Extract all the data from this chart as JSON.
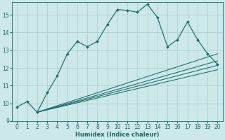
{
  "xlabel": "Humidex (Indice chaleur)",
  "bg_color": "#cce8e8",
  "grid_color": "#aacccc",
  "line_color": "#1a6b6b",
  "xlim": [
    -0.5,
    20.5
  ],
  "ylim": [
    9.0,
    15.7
  ],
  "xticks": [
    0,
    1,
    2,
    3,
    4,
    5,
    6,
    7,
    8,
    9,
    10,
    11,
    12,
    13,
    14,
    15,
    16,
    17,
    18,
    19,
    20
  ],
  "yticks": [
    9,
    10,
    11,
    12,
    13,
    14,
    15
  ],
  "main_x": [
    0,
    1,
    2,
    3,
    4,
    5,
    6,
    7,
    8,
    9,
    10,
    11,
    12,
    13,
    14,
    15,
    16,
    17,
    18,
    19,
    20
  ],
  "main_y": [
    9.8,
    10.1,
    9.5,
    10.6,
    11.55,
    12.8,
    13.5,
    13.2,
    13.5,
    14.45,
    15.3,
    15.25,
    15.15,
    15.6,
    14.85,
    13.2,
    13.6,
    14.6,
    13.6,
    12.8,
    12.2
  ],
  "smooth_lines": [
    {
      "x": [
        2,
        20
      ],
      "y": [
        9.5,
        12.8
      ]
    },
    {
      "x": [
        2,
        20
      ],
      "y": [
        9.5,
        12.4
      ]
    },
    {
      "x": [
        2,
        20
      ],
      "y": [
        9.5,
        12.15
      ]
    },
    {
      "x": [
        2,
        20
      ],
      "y": [
        9.5,
        11.9
      ]
    }
  ]
}
